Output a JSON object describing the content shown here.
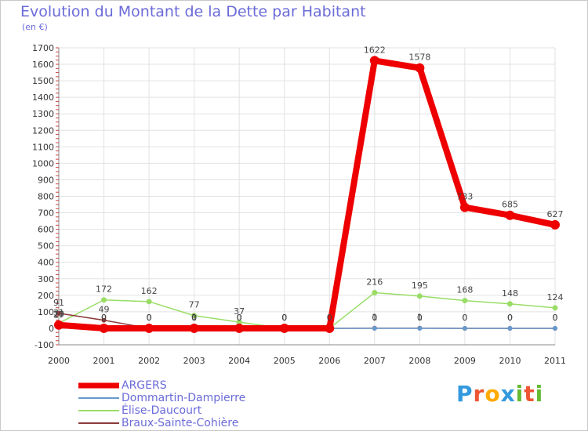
{
  "chart_data": {
    "type": "line",
    "title": "Evolution du Montant de la Dette par Habitant",
    "subtitle": "(en €)",
    "x": [
      "2000",
      "2001",
      "2002",
      "2003",
      "2004",
      "2005",
      "2006",
      "2007",
      "2008",
      "2009",
      "2010",
      "2011"
    ],
    "ylim": [
      -100,
      1700
    ],
    "yticks": [
      -100,
      0,
      100,
      200,
      300,
      400,
      500,
      600,
      700,
      800,
      900,
      1000,
      1100,
      1200,
      1300,
      1400,
      1500,
      1600,
      1700
    ],
    "grid": true,
    "legend_position": "bottom-left",
    "series": [
      {
        "name": "Élise-Daucourt",
        "color": "#99dd66",
        "values": [
          31,
          172,
          162,
          77,
          37,
          0,
          0,
          216,
          195,
          168,
          148,
          124
        ],
        "labels": [
          "31",
          "172",
          "162",
          "77",
          "37",
          "0",
          "0",
          "216",
          "195",
          "168",
          "148",
          "124"
        ]
      },
      {
        "name": "Braux-Sainte-Cohière",
        "color": "#8b3a3a",
        "values": [
          91,
          49,
          0,
          1,
          0,
          0,
          0,
          1,
          1,
          0,
          0,
          0
        ],
        "labels": [
          "91",
          "49",
          "0",
          "1",
          "0",
          "0",
          "0",
          "1",
          "1",
          "0",
          "0",
          "0"
        ]
      },
      {
        "name": "Dommartin-Dampierre",
        "color": "#6699cc",
        "values": [
          17,
          0,
          0,
          0,
          0,
          0,
          0,
          0,
          0,
          0,
          0,
          0
        ],
        "labels": [
          "17",
          "0",
          "0",
          "0",
          "0",
          "0",
          "0",
          "0",
          "0",
          "0",
          "0",
          "0"
        ]
      },
      {
        "name": "ARGERS",
        "color": "#ee0000",
        "values": [
          20,
          0,
          0,
          0,
          0,
          0,
          0,
          1622,
          1578,
          733,
          685,
          627
        ],
        "labels": [
          "20",
          "0",
          "0",
          "0",
          "0",
          "0",
          "0",
          "1622",
          "1578",
          "733",
          "685",
          "627"
        ]
      }
    ]
  },
  "legend": {
    "items": [
      {
        "name": "ARGERS",
        "color": "#ee0000"
      },
      {
        "name": "Dommartin-Dampierre",
        "color": "#6699cc"
      },
      {
        "name": "Élise-Daucourt",
        "color": "#99dd66"
      },
      {
        "name": "Braux-Sainte-Cohière",
        "color": "#8b3a3a"
      }
    ]
  },
  "logo": {
    "text": "Proxiti"
  }
}
